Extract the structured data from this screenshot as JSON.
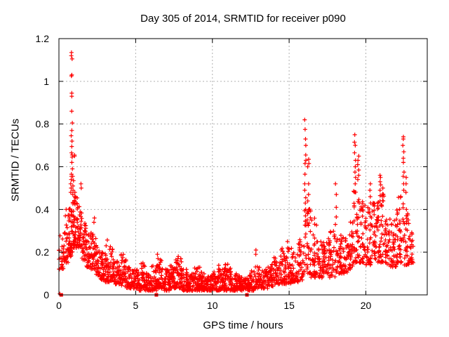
{
  "chart_data": {
    "type": "scatter",
    "title": "Day 305 of 2014, SRMTID for receiver p090",
    "xlabel": "GPS time / hours",
    "ylabel": "SRMTID / TECUs",
    "xlim": [
      0,
      24
    ],
    "ylim": [
      0,
      1.2
    ],
    "xticks": [
      {
        "v": 0,
        "label": "0"
      },
      {
        "v": 5,
        "label": "5"
      },
      {
        "v": 10,
        "label": "10"
      },
      {
        "v": 15,
        "label": "15"
      },
      {
        "v": 20,
        "label": "20"
      }
    ],
    "yticks": [
      {
        "v": 0,
        "label": "0"
      },
      {
        "v": 0.2,
        "label": "0.2"
      },
      {
        "v": 0.4,
        "label": "0.4"
      },
      {
        "v": 0.6,
        "label": "0.6"
      },
      {
        "v": 0.8,
        "label": "0.8"
      },
      {
        "v": 1,
        "label": "1"
      },
      {
        "v": 1.2,
        "label": "1.2"
      }
    ],
    "grid": true,
    "legend": "none",
    "marker": "plus",
    "marker_color": "#ff0000",
    "grid_color": "#b0b0b0",
    "border_color": "#000000",
    "x_data_range": [
      0.05,
      23.1
    ],
    "peak_value": 1.135,
    "peak_time": 0.84,
    "density_bins": [
      [
        0.0,
        0.3,
        0.12,
        0.28,
        22
      ],
      [
        0.3,
        0.6,
        0.15,
        0.33,
        30
      ],
      [
        0.6,
        0.9,
        0.18,
        0.42,
        45
      ],
      [
        0.9,
        1.2,
        0.22,
        0.46,
        50
      ],
      [
        1.2,
        1.5,
        0.22,
        0.42,
        40
      ],
      [
        1.5,
        1.8,
        0.16,
        0.34,
        36
      ],
      [
        1.8,
        2.1,
        0.13,
        0.3,
        34
      ],
      [
        2.1,
        2.4,
        0.12,
        0.3,
        32
      ],
      [
        2.4,
        2.7,
        0.09,
        0.24,
        30
      ],
      [
        2.7,
        3.0,
        0.07,
        0.2,
        30
      ],
      [
        3.0,
        3.3,
        0.06,
        0.26,
        34
      ],
      [
        3.3,
        3.6,
        0.06,
        0.23,
        32
      ],
      [
        3.6,
        4.0,
        0.05,
        0.16,
        36
      ],
      [
        4.0,
        4.4,
        0.04,
        0.19,
        38
      ],
      [
        4.4,
        4.8,
        0.03,
        0.13,
        38
      ],
      [
        4.8,
        5.2,
        0.03,
        0.12,
        40
      ],
      [
        5.2,
        5.6,
        0.02,
        0.15,
        40
      ],
      [
        5.6,
        6.0,
        0.02,
        0.11,
        40
      ],
      [
        6.0,
        6.4,
        0.02,
        0.14,
        42
      ],
      [
        6.4,
        6.8,
        0.03,
        0.17,
        44
      ],
      [
        6.8,
        7.2,
        0.02,
        0.12,
        44
      ],
      [
        7.2,
        7.6,
        0.03,
        0.14,
        44
      ],
      [
        7.6,
        8.0,
        0.03,
        0.17,
        44
      ],
      [
        8.0,
        8.4,
        0.02,
        0.12,
        44
      ],
      [
        8.4,
        8.8,
        0.02,
        0.1,
        44
      ],
      [
        8.8,
        9.2,
        0.02,
        0.13,
        44
      ],
      [
        9.2,
        9.6,
        0.02,
        0.11,
        44
      ],
      [
        9.6,
        10.0,
        0.02,
        0.1,
        44
      ],
      [
        10.0,
        10.4,
        0.02,
        0.11,
        44
      ],
      [
        10.4,
        10.8,
        0.02,
        0.14,
        44
      ],
      [
        10.8,
        11.2,
        0.02,
        0.15,
        44
      ],
      [
        11.2,
        11.6,
        0.02,
        0.1,
        42
      ],
      [
        11.6,
        12.0,
        0.02,
        0.09,
        40
      ],
      [
        12.0,
        12.4,
        0.02,
        0.08,
        36
      ],
      [
        12.4,
        12.8,
        0.02,
        0.12,
        36
      ],
      [
        12.8,
        13.2,
        0.03,
        0.14,
        36
      ],
      [
        13.2,
        13.6,
        0.03,
        0.13,
        36
      ],
      [
        13.6,
        14.0,
        0.04,
        0.15,
        36
      ],
      [
        14.0,
        14.4,
        0.05,
        0.18,
        36
      ],
      [
        14.4,
        14.8,
        0.05,
        0.22,
        36
      ],
      [
        14.8,
        15.2,
        0.05,
        0.22,
        36
      ],
      [
        15.2,
        15.6,
        0.06,
        0.2,
        36
      ],
      [
        15.6,
        16.0,
        0.07,
        0.26,
        36
      ],
      [
        16.0,
        16.4,
        0.1,
        0.42,
        40
      ],
      [
        16.4,
        16.8,
        0.08,
        0.4,
        36
      ],
      [
        16.8,
        17.2,
        0.08,
        0.25,
        36
      ],
      [
        17.2,
        17.6,
        0.1,
        0.28,
        36
      ],
      [
        17.6,
        18.0,
        0.08,
        0.3,
        36
      ],
      [
        18.0,
        18.4,
        0.1,
        0.3,
        36
      ],
      [
        18.4,
        18.8,
        0.1,
        0.28,
        36
      ],
      [
        18.8,
        19.2,
        0.12,
        0.38,
        36
      ],
      [
        19.2,
        19.6,
        0.15,
        0.5,
        40
      ],
      [
        19.6,
        20.0,
        0.15,
        0.45,
        40
      ],
      [
        20.0,
        20.4,
        0.14,
        0.42,
        40
      ],
      [
        20.4,
        20.8,
        0.15,
        0.45,
        40
      ],
      [
        20.8,
        21.2,
        0.15,
        0.48,
        40
      ],
      [
        21.2,
        21.6,
        0.14,
        0.36,
        38
      ],
      [
        21.6,
        22.0,
        0.13,
        0.36,
        38
      ],
      [
        22.0,
        22.4,
        0.15,
        0.48,
        40
      ],
      [
        22.4,
        22.8,
        0.14,
        0.45,
        40
      ],
      [
        22.8,
        23.1,
        0.15,
        0.3,
        24
      ]
    ],
    "spike_columns": [
      {
        "x": 0.05,
        "ys": [
          0.005
        ]
      },
      {
        "x": 0.45,
        "ys": [
          0.4,
          0.37
        ]
      },
      {
        "x": 0.84,
        "ys": [
          1.135,
          1.12,
          1.105,
          1.03,
          1.025,
          0.945,
          0.93,
          0.86,
          0.805,
          0.77,
          0.745,
          0.72,
          0.695,
          0.665,
          0.655,
          0.645,
          0.62,
          0.59,
          0.565
        ]
      },
      {
        "x": 0.78,
        "ys": [
          0.555,
          0.54,
          0.52,
          0.5,
          0.48
        ]
      },
      {
        "x": 0.92,
        "ys": [
          0.555,
          0.535,
          0.51,
          0.49,
          0.47
        ]
      },
      {
        "x": 1.02,
        "ys": [
          0.48,
          0.46,
          0.44
        ]
      },
      {
        "x": 1.05,
        "ys": [
          0.655,
          0.65
        ]
      },
      {
        "x": 1.45,
        "ys": [
          0.52,
          0.5
        ]
      },
      {
        "x": 2.3,
        "ys": [
          0.36,
          0.34
        ]
      },
      {
        "x": 6.45,
        "ys": [
          0.19,
          0.17
        ]
      },
      {
        "x": 7.75,
        "ys": [
          0.18,
          0.16
        ]
      },
      {
        "x": 12.85,
        "ys": [
          0.21,
          0.19
        ]
      },
      {
        "x": 14.9,
        "ys": [
          0.25,
          0.22
        ]
      },
      {
        "x": 16.05,
        "ys": [
          0.82,
          0.775,
          0.73,
          0.7,
          0.655,
          0.63,
          0.615,
          0.565,
          0.52,
          0.49,
          0.455,
          0.43,
          0.4,
          0.37,
          0.345
        ]
      },
      {
        "x": 16.25,
        "ys": [
          0.635,
          0.615,
          0.6,
          0.52,
          0.47,
          0.44,
          0.4
        ]
      },
      {
        "x": 18.05,
        "ys": [
          0.52,
          0.47,
          0.41,
          0.365,
          0.33
        ]
      },
      {
        "x": 19.3,
        "ys": [
          0.75,
          0.715,
          0.7,
          0.665,
          0.63,
          0.6,
          0.575,
          0.55,
          0.52
        ]
      },
      {
        "x": 19.5,
        "ys": [
          0.65,
          0.63,
          0.61,
          0.585,
          0.56,
          0.54
        ]
      },
      {
        "x": 20.3,
        "ys": [
          0.52,
          0.49,
          0.46,
          0.43
        ]
      },
      {
        "x": 20.95,
        "ys": [
          0.56,
          0.55,
          0.53,
          0.515,
          0.49,
          0.465,
          0.44
        ]
      },
      {
        "x": 21.1,
        "ys": [
          0.5,
          0.47,
          0.44
        ]
      },
      {
        "x": 22.45,
        "ys": [
          0.74,
          0.73,
          0.7,
          0.67,
          0.64,
          0.62,
          0.575,
          0.555,
          0.52,
          0.49
        ]
      },
      {
        "x": 22.6,
        "ys": [
          0.55,
          0.52,
          0.48
        ]
      }
    ],
    "baseline_markers": {
      "shape": "filled-square",
      "y": 0,
      "xs": [
        0.15,
        6.35,
        12.25
      ]
    },
    "seed": 305,
    "point_skew": 1.6
  }
}
